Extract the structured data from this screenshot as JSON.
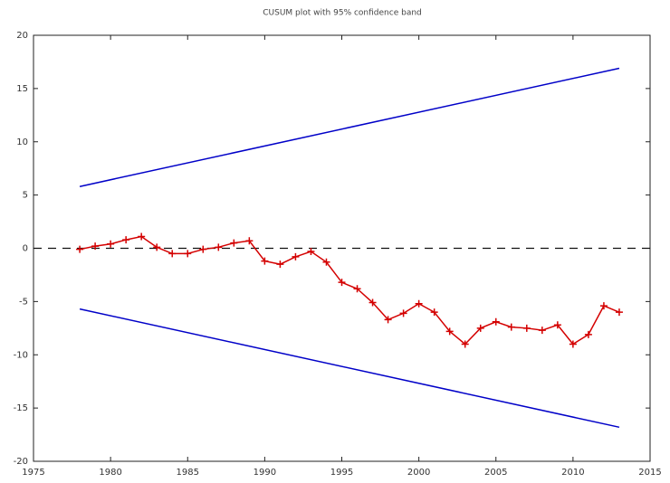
{
  "chart_data": {
    "type": "line",
    "title": "CUSUM plot with 95% confidence band",
    "xlim": [
      1975,
      2015
    ],
    "ylim": [
      -20,
      20
    ],
    "xticks": [
      1975,
      1980,
      1985,
      1990,
      1995,
      2000,
      2005,
      2010,
      2015
    ],
    "yticks": [
      -20,
      -15,
      -10,
      -5,
      0,
      5,
      10,
      15,
      20
    ],
    "hline": 0,
    "series": [
      {
        "color": "#d40000",
        "marker": "+",
        "x": [
          1978,
          1979,
          1980,
          1981,
          1982,
          1983,
          1984,
          1985,
          1986,
          1987,
          1988,
          1989,
          1990,
          1991,
          1992,
          1993,
          1994,
          1995,
          1996,
          1997,
          1998,
          1999,
          2000,
          2001,
          2002,
          2003,
          2004,
          2005,
          2006,
          2007,
          2008,
          2009,
          2010,
          2011,
          2012,
          2013
        ],
        "values": [
          -0.1,
          0.2,
          0.4,
          0.8,
          1.1,
          0.1,
          -0.5,
          -0.5,
          -0.1,
          0.1,
          0.5,
          0.7,
          -1.2,
          -1.5,
          -0.8,
          -0.3,
          -1.3,
          -3.2,
          -3.8,
          -5.1,
          -6.7,
          -6.1,
          -5.2,
          -6.0,
          -7.8,
          -9.0,
          -7.5,
          -6.9,
          -7.4,
          -7.5,
          -7.7,
          -7.2,
          -9.0,
          -8.1,
          -5.4,
          -6.0
        ]
      },
      {
        "color": "#0000c8",
        "x": [
          1978,
          2013
        ],
        "values": [
          5.8,
          16.9
        ]
      },
      {
        "color": "#0000c8",
        "x": [
          1978,
          2013
        ],
        "values": [
          -5.7,
          -16.8
        ]
      }
    ]
  }
}
